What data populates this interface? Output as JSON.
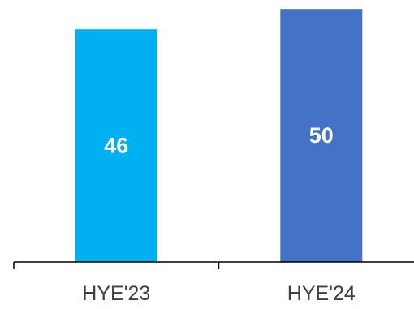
{
  "chart_data": {
    "type": "bar",
    "categories": [
      "HYE'23",
      "HYE'24"
    ],
    "values": [
      46,
      50
    ],
    "value_labels": [
      "46",
      "50"
    ],
    "colors": [
      "#00B0F0",
      "#4472C4"
    ],
    "title": "",
    "xlabel": "",
    "ylabel": "",
    "ylim": [
      0,
      51
    ],
    "grid": false,
    "legend": "none"
  }
}
